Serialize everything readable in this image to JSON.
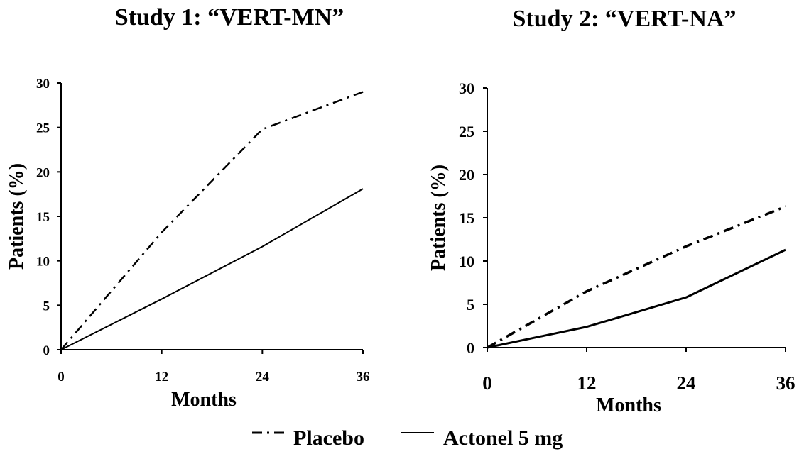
{
  "chart_data": [
    {
      "type": "line",
      "title": "Study 1: “VERT-MN”",
      "xlabel": "Months",
      "ylabel": "Patients (%)",
      "x": [
        0,
        12,
        24,
        36
      ],
      "xticks": [
        "0",
        "12",
        "24",
        "36"
      ],
      "yticks": [
        "0",
        "5",
        "10",
        "15",
        "20",
        "25",
        "30"
      ],
      "xlim": [
        0,
        36
      ],
      "ylim": [
        0,
        30
      ],
      "grid": false,
      "series": [
        {
          "name": "Placebo",
          "style": "dash-dot",
          "values": [
            0,
            13.2,
            24.8,
            29
          ]
        },
        {
          "name": "Actonel 5 mg",
          "style": "solid",
          "values": [
            0,
            5.7,
            11.6,
            18.1
          ]
        }
      ]
    },
    {
      "type": "line",
      "title": "Study 2: “VERT-NA”",
      "xlabel": "Months",
      "ylabel": "Patients (%)",
      "x": [
        0,
        12,
        24,
        36
      ],
      "xticks": [
        "0",
        "12",
        "24",
        "36"
      ],
      "yticks": [
        "0",
        "5",
        "10",
        "15",
        "20",
        "25",
        "30"
      ],
      "xlim": [
        0,
        36
      ],
      "ylim": [
        0,
        30
      ],
      "grid": false,
      "series": [
        {
          "name": "Placebo",
          "style": "dash-dot",
          "values": [
            0,
            6.5,
            11.7,
            16.3
          ]
        },
        {
          "name": "Actonel 5 mg",
          "style": "solid",
          "values": [
            0,
            2.4,
            5.8,
            11.3
          ]
        }
      ]
    }
  ],
  "legend": {
    "placement": "bottom-center",
    "items": [
      {
        "label": "Placebo",
        "style": "dash-dot"
      },
      {
        "label": "Actonel 5 mg",
        "style": "solid"
      }
    ]
  },
  "colors": {
    "lines": "#000000",
    "background": "#ffffff"
  }
}
